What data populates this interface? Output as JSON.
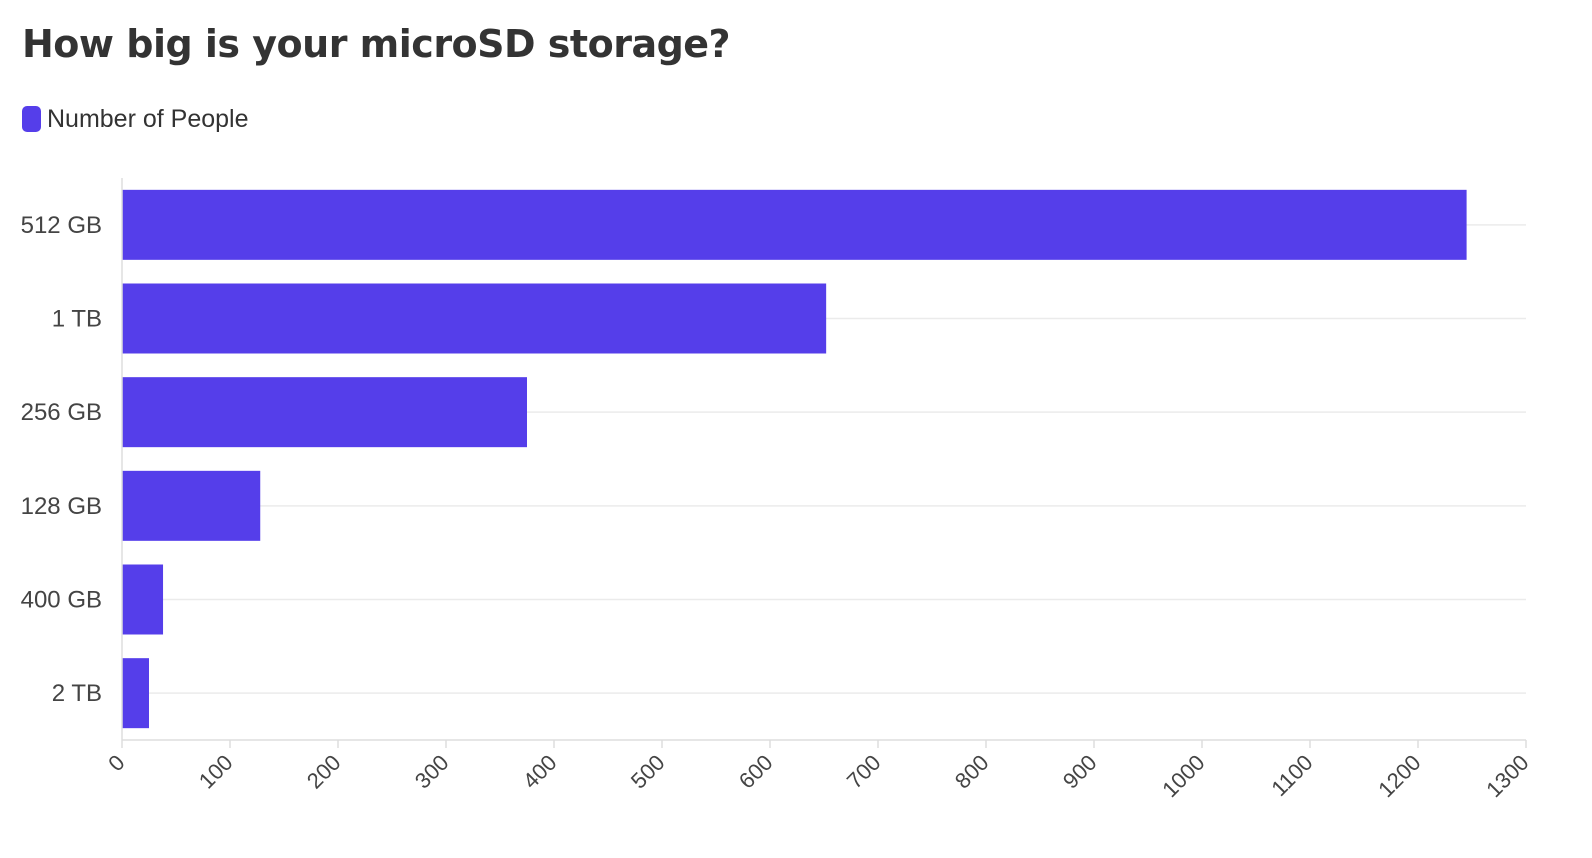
{
  "chart_data": {
    "type": "bar",
    "orientation": "horizontal",
    "title": "How big is your microSD storage?",
    "categories": [
      "512 GB",
      "1 TB",
      "256 GB",
      "128 GB",
      "400 GB",
      "2 TB"
    ],
    "series": [
      {
        "name": "Number of People",
        "color": "#553EEA",
        "values": [
          1245,
          652,
          375,
          128,
          38,
          25
        ]
      }
    ],
    "xlabel": "",
    "ylabel": "",
    "xlim": [
      0,
      1300
    ],
    "xticks": [
      0,
      100,
      200,
      300,
      400,
      500,
      600,
      700,
      800,
      900,
      1000,
      1100,
      1200,
      1300
    ],
    "grid": true,
    "legend_position": "top-left"
  },
  "colors": {
    "bar": "#553EEA",
    "grid": "#ebebeb",
    "axis": "#dddddd",
    "text": "#333333"
  }
}
